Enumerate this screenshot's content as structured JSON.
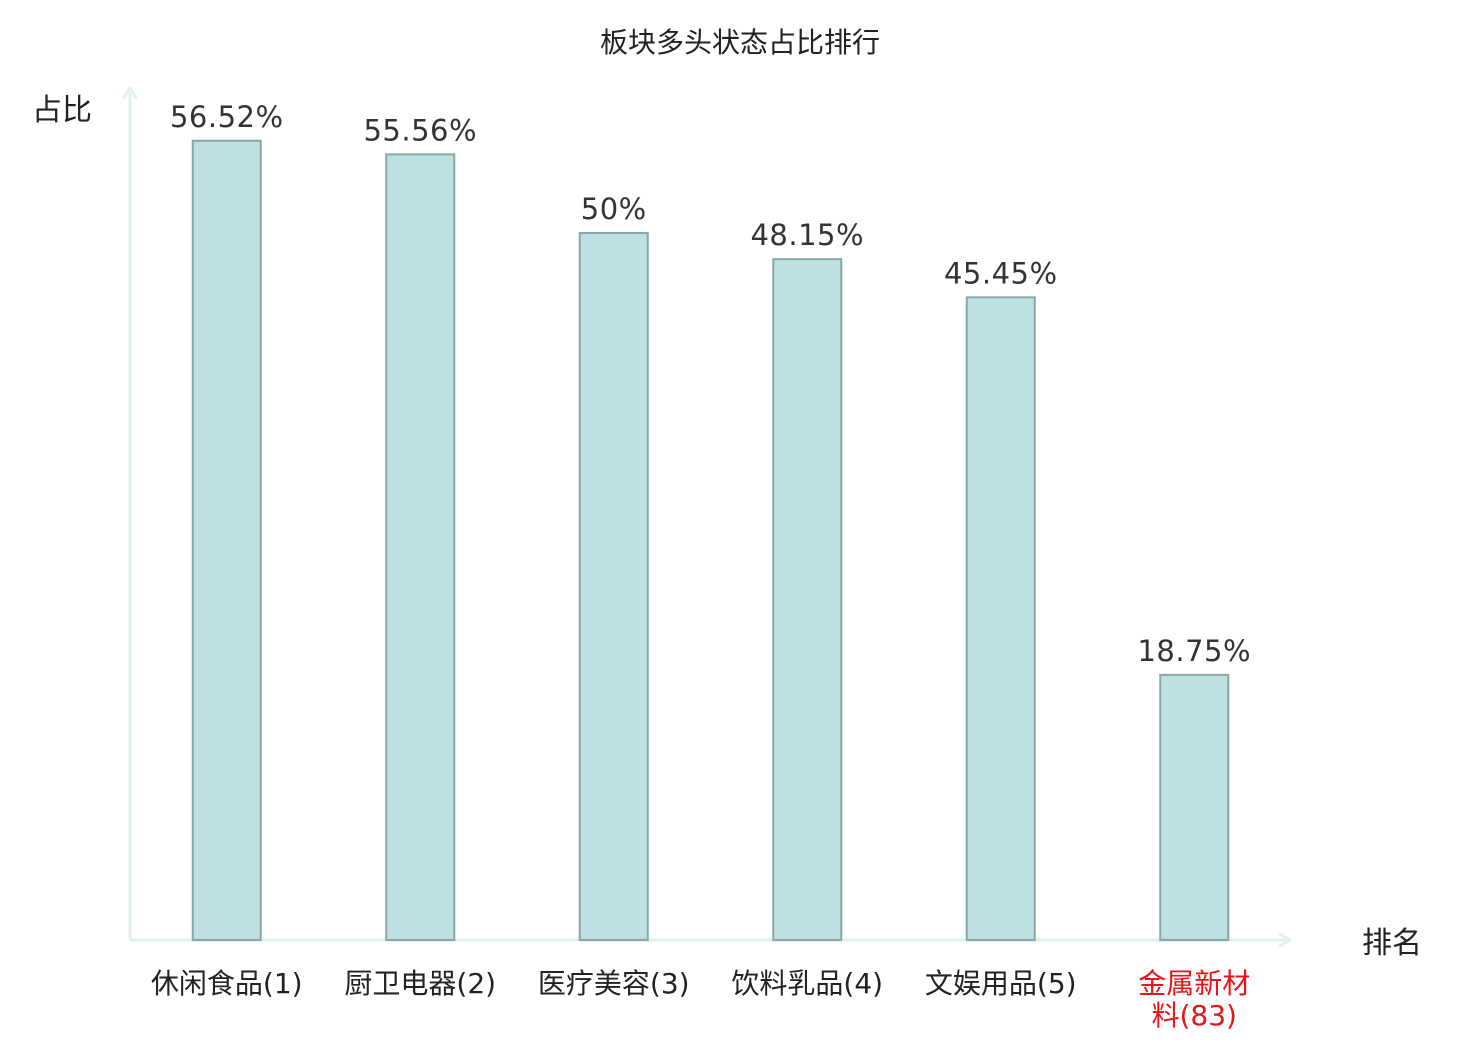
{
  "chart_data": {
    "type": "bar",
    "title": "板块多头状态占比排行",
    "xlabel": "排名",
    "ylabel": "占比",
    "ylim": [
      0,
      60
    ],
    "grid": false,
    "categories": [
      [
        "休闲食品(1)"
      ],
      [
        "厨卫电器(2)"
      ],
      [
        "医疗美容(3)"
      ],
      [
        "饮料乳品(4)"
      ],
      [
        "文娱用品(5)"
      ],
      [
        "金属新材",
        "料(83)"
      ]
    ],
    "values": [
      56.52,
      55.56,
      50,
      48.15,
      45.45,
      18.75
    ],
    "value_labels": [
      "56.52%",
      "55.56%",
      "50%",
      "48.15%",
      "45.45%",
      "18.75%"
    ],
    "highlight_index": 5,
    "colors": {
      "bar_fill": "#bde1e3",
      "bar_stroke": "#8aa6a9",
      "axis": "#e0f2ef",
      "label": "#222222",
      "highlight": "#e8141b"
    }
  }
}
